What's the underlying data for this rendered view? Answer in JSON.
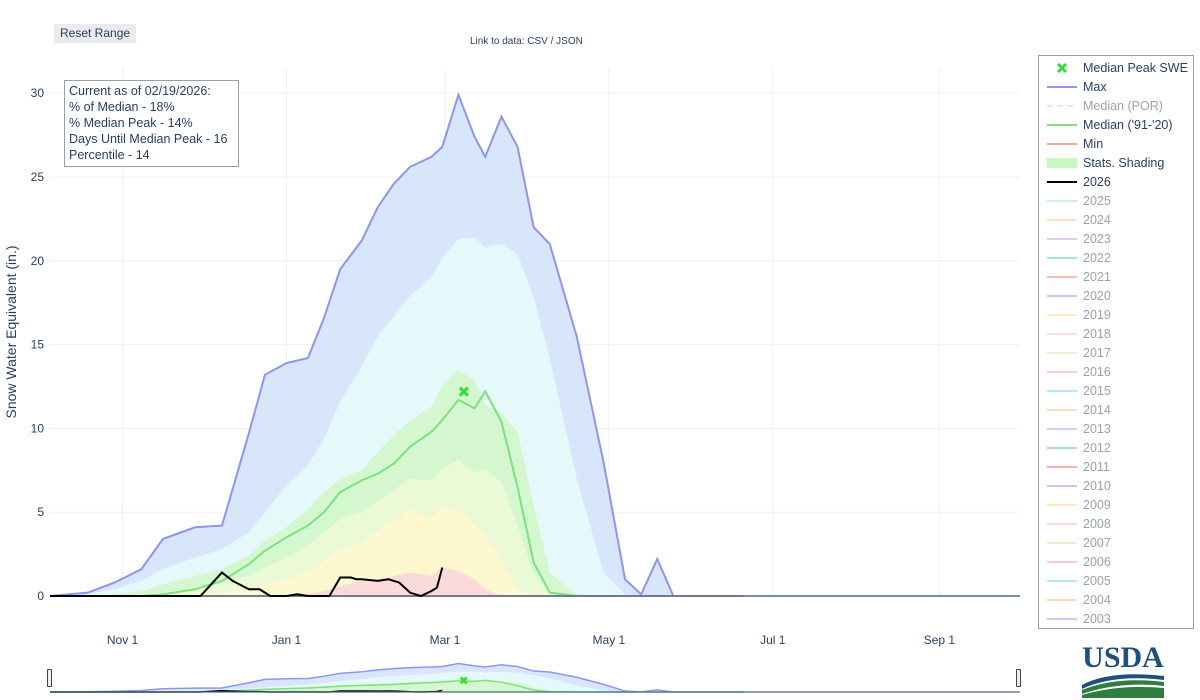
{
  "toolbar": {
    "reset_label": "Reset Range"
  },
  "data_link": {
    "prefix": "Link to data:",
    "csv": "CSV",
    "sep": "/",
    "json": "JSON"
  },
  "info_box": {
    "lines": [
      "Current as of 02/19/2026:",
      "% of Median - 18%",
      "% Median Peak - 14%",
      "Days Until Median Peak - 16",
      "Percentile - 14"
    ]
  },
  "legend": [
    {
      "label": "Median Peak SWE",
      "kind": "marker",
      "color": "#33dd33",
      "dim": false
    },
    {
      "label": "Max",
      "kind": "line",
      "color": "#8f95ee",
      "dim": false
    },
    {
      "label": "Median (POR)",
      "kind": "dash",
      "color": "#a8e8a8",
      "dim": true
    },
    {
      "label": "Median ('91-'20)",
      "kind": "line",
      "color": "#7ee07e",
      "dim": false
    },
    {
      "label": "Min",
      "kind": "line",
      "color": "#f2a6a6",
      "dim": false
    },
    {
      "label": "Stats. Shading",
      "kind": "fill",
      "color": "#c9f7c2",
      "dim": false
    },
    {
      "label": "2026",
      "kind": "line",
      "color": "#000000",
      "dim": false
    },
    {
      "label": "2025",
      "kind": "line",
      "color": "#7fe3ea",
      "dim": true
    },
    {
      "label": "2024",
      "kind": "line",
      "color": "#f6c08f",
      "dim": true
    },
    {
      "label": "2023",
      "kind": "line",
      "color": "#c48ef2",
      "dim": true
    },
    {
      "label": "2022",
      "kind": "line",
      "color": "#45c79b",
      "dim": true
    },
    {
      "label": "2021",
      "kind": "line",
      "color": "#f06a60",
      "dim": true
    },
    {
      "label": "2020",
      "kind": "line",
      "color": "#7f8ef0",
      "dim": true
    },
    {
      "label": "2019",
      "kind": "line",
      "color": "#ffd77a",
      "dim": true
    },
    {
      "label": "2018",
      "kind": "line",
      "color": "#f3b3e6",
      "dim": true
    },
    {
      "label": "2017",
      "kind": "line",
      "color": "#c5e89b",
      "dim": true
    },
    {
      "label": "2016",
      "kind": "line",
      "color": "#f48fb1",
      "dim": true
    },
    {
      "label": "2015",
      "kind": "line",
      "color": "#57dbe8",
      "dim": true
    },
    {
      "label": "2014",
      "kind": "line",
      "color": "#f6b77a",
      "dim": true
    },
    {
      "label": "2013",
      "kind": "line",
      "color": "#b78af0",
      "dim": true
    },
    {
      "label": "2012",
      "kind": "line",
      "color": "#3fbf95",
      "dim": true
    },
    {
      "label": "2011",
      "kind": "line",
      "color": "#ef5a50",
      "dim": true
    },
    {
      "label": "2010",
      "kind": "line",
      "color": "#7b86ea",
      "dim": true
    },
    {
      "label": "2009",
      "kind": "line",
      "color": "#ffcf66",
      "dim": true
    },
    {
      "label": "2008",
      "kind": "line",
      "color": "#f0a8e2",
      "dim": true
    },
    {
      "label": "2007",
      "kind": "line",
      "color": "#bfe58e",
      "dim": true
    },
    {
      "label": "2006",
      "kind": "line",
      "color": "#f2849f",
      "dim": true
    },
    {
      "label": "2005",
      "kind": "line",
      "color": "#4fd3e2",
      "dim": true
    },
    {
      "label": "2004",
      "kind": "line",
      "color": "#f3ae6e",
      "dim": true
    },
    {
      "label": "2003",
      "kind": "line",
      "color": "#b080ee",
      "dim": true
    }
  ],
  "logo": {
    "text": "USDA"
  },
  "chart_data": {
    "type": "area",
    "title": "",
    "xlabel": "",
    "ylabel": "Snow Water Equivalent (in.)",
    "x_ticks": [
      "Nov 1",
      "Jan 1",
      "Mar 1",
      "May 1",
      "Jul 1",
      "Sep 1"
    ],
    "x_tick_days": [
      31,
      92,
      151,
      212,
      273,
      335
    ],
    "x_range_days": [
      4,
      365
    ],
    "y_ticks": [
      0,
      5,
      10,
      15,
      20,
      25,
      30
    ],
    "ylim": [
      0,
      31.5
    ],
    "grid": true,
    "legend_position": "right",
    "colors": {
      "max_line": "#8f95ee",
      "max_fill": "#d7e6fb",
      "p90_fill": "#e6f9fa",
      "p70_fill": "#d4f7d0",
      "p50_fill": "#ebf9d6",
      "p30_fill": "#fdf8cf",
      "p10_fill": "#fbdada",
      "median_line": "#7ee07e",
      "min_line": "#f2a6a6",
      "current_line": "#000000",
      "marker": "#33dd33"
    },
    "x_days": [
      4,
      18,
      28,
      38,
      46,
      58,
      68,
      78,
      84,
      92,
      100,
      106,
      112,
      120,
      126,
      132,
      138,
      146,
      150,
      156,
      162,
      166,
      172,
      178,
      184,
      190,
      200,
      210,
      218,
      224,
      230,
      236,
      240,
      246,
      252,
      262
    ],
    "series": [
      {
        "name": "Max",
        "values": [
          0,
          0.2,
          0.8,
          1.6,
          3.4,
          4.1,
          4.2,
          9.7,
          13.2,
          13.9,
          14.2,
          16.6,
          19.5,
          21.2,
          23.2,
          24.6,
          25.6,
          26.2,
          26.8,
          29.9,
          27.4,
          26.2,
          28.6,
          26.8,
          22.0,
          21.0,
          15.5,
          8.0,
          1.0,
          0.1,
          2.2,
          0,
          0,
          0,
          0,
          0
        ]
      },
      {
        "name": "p90",
        "values": [
          0,
          0.1,
          0.4,
          0.9,
          1.6,
          2.3,
          2.8,
          3.8,
          5.0,
          6.6,
          7.8,
          9.4,
          11.6,
          13.7,
          15.5,
          16.7,
          17.9,
          19.0,
          20.2,
          21.3,
          21.4,
          20.8,
          21.0,
          20.4,
          17.8,
          14.2,
          7.0,
          1.4,
          0.1,
          0,
          0,
          0,
          0,
          0,
          0,
          0
        ]
      },
      {
        "name": "p70",
        "values": [
          0,
          0,
          0.1,
          0.3,
          0.7,
          1.2,
          1.6,
          2.4,
          3.3,
          4.1,
          5.2,
          6.2,
          7.0,
          7.5,
          8.6,
          9.6,
          10.5,
          11.3,
          12.6,
          13.5,
          12.9,
          11.4,
          10.9,
          9.8,
          5.4,
          1.4,
          0.1,
          0,
          0,
          0,
          0,
          0,
          0,
          0,
          0,
          0
        ]
      },
      {
        "name": "p50",
        "values": [
          0,
          0,
          0,
          0.1,
          0.2,
          0.5,
          0.8,
          1.2,
          1.7,
          2.3,
          3.0,
          3.8,
          4.6,
          5.0,
          5.6,
          6.3,
          7.0,
          6.9,
          7.6,
          8.1,
          7.4,
          7.5,
          6.8,
          4.2,
          1.3,
          0.2,
          0,
          0,
          0,
          0,
          0,
          0,
          0,
          0,
          0,
          0
        ]
      },
      {
        "name": "p30",
        "values": [
          0,
          0,
          0,
          0,
          0,
          0.1,
          0.2,
          0.4,
          0.7,
          1.0,
          1.5,
          2.1,
          2.8,
          3.2,
          3.9,
          4.5,
          5.2,
          4.6,
          5.3,
          5.1,
          4.3,
          3.6,
          2.2,
          0.4,
          0,
          0,
          0,
          0,
          0,
          0,
          0,
          0,
          0,
          0,
          0,
          0
        ]
      },
      {
        "name": "p10",
        "values": [
          0,
          0,
          0,
          0,
          0,
          0,
          0,
          0,
          0,
          0,
          0.1,
          0.3,
          0.6,
          0.9,
          1.0,
          1.2,
          1.4,
          1.2,
          1.7,
          1.5,
          1.0,
          0.4,
          0,
          0,
          0,
          0,
          0,
          0,
          0,
          0,
          0,
          0,
          0,
          0,
          0,
          0
        ]
      },
      {
        "name": "Median ('91-'20)",
        "values": [
          0,
          0,
          0,
          0,
          0.1,
          0.4,
          0.9,
          1.9,
          2.7,
          3.5,
          4.2,
          5.0,
          6.2,
          6.9,
          7.3,
          7.9,
          8.9,
          9.8,
          10.5,
          11.7,
          11.2,
          12.2,
          10.4,
          6.5,
          2.0,
          0.2,
          0,
          0,
          0,
          0,
          0,
          0,
          0,
          0,
          0,
          0
        ]
      },
      {
        "name": "Min",
        "values": [
          0,
          0,
          0,
          0,
          0,
          0,
          0,
          0,
          0,
          0,
          0,
          0,
          0,
          0,
          0,
          0,
          0,
          0,
          0,
          0,
          0,
          0,
          0,
          0,
          0,
          0,
          0,
          0,
          0,
          0,
          0,
          0,
          0,
          0,
          0,
          0
        ]
      }
    ],
    "current_year": {
      "name": "2026",
      "x_days": [
        4,
        60,
        68,
        72,
        78,
        82,
        86,
        92,
        96,
        100,
        104,
        108,
        112,
        114,
        116,
        118,
        120,
        126,
        130,
        134,
        138,
        142,
        146,
        148,
        150
      ],
      "values": [
        0,
        0,
        1.4,
        0.9,
        0.4,
        0.4,
        0.0,
        0.0,
        0.1,
        0,
        0,
        0,
        1.1,
        1.1,
        1.1,
        1.0,
        1.0,
        0.9,
        1.0,
        0.8,
        0.2,
        0,
        0.3,
        0.5,
        1.7
      ]
    },
    "median_peak": {
      "day": 158,
      "value": 12.2
    }
  }
}
